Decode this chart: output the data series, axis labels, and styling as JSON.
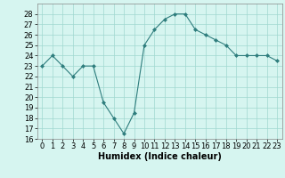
{
  "x": [
    0,
    1,
    2,
    3,
    4,
    5,
    6,
    7,
    8,
    9,
    10,
    11,
    12,
    13,
    14,
    15,
    16,
    17,
    18,
    19,
    20,
    21,
    22,
    23
  ],
  "y": [
    23,
    24,
    23,
    22,
    23,
    23,
    19.5,
    18,
    16.5,
    18.5,
    25,
    26.5,
    27.5,
    28,
    28,
    26.5,
    26,
    25.5,
    25,
    24,
    24,
    24,
    24,
    23.5
  ],
  "line_color": "#2e7d7d",
  "marker": "D",
  "marker_size": 2,
  "bg_color": "#d6f5f0",
  "grid_color": "#a0d8d0",
  "xlabel": "Humidex (Indice chaleur)",
  "xlim": [
    -0.5,
    23.5
  ],
  "ylim": [
    16,
    29
  ],
  "yticks": [
    16,
    17,
    18,
    19,
    20,
    21,
    22,
    23,
    24,
    25,
    26,
    27,
    28
  ],
  "xticks": [
    0,
    1,
    2,
    3,
    4,
    5,
    6,
    7,
    8,
    9,
    10,
    11,
    12,
    13,
    14,
    15,
    16,
    17,
    18,
    19,
    20,
    21,
    22,
    23
  ],
  "label_fontsize": 7,
  "tick_fontsize": 6
}
